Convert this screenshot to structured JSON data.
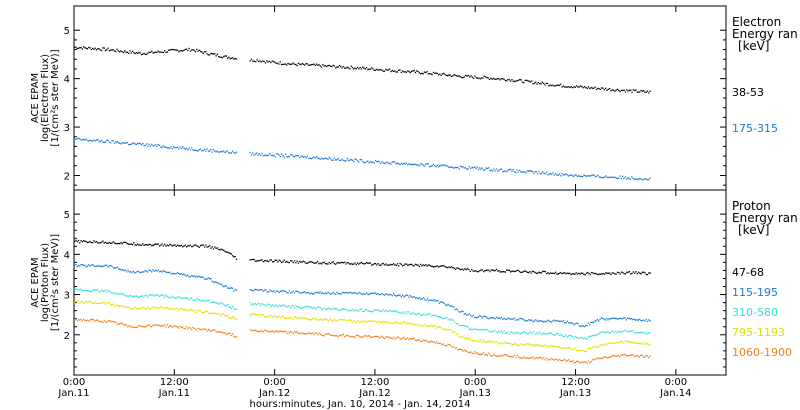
{
  "chart_data": {
    "type": "scatter",
    "x_title": "hours:minutes, Jan. 10, 2014 - Jan. 14, 2014",
    "x_range_hours": [
      0,
      78
    ],
    "x_ticks": [
      {
        "hour": 0,
        "time": "0:00",
        "date": "Jan.11"
      },
      {
        "hour": 12,
        "time": "12:00",
        "date": "Jan.11"
      },
      {
        "hour": 24,
        "time": "0:00",
        "date": "Jan.12"
      },
      {
        "hour": 36,
        "time": "12:00",
        "date": "Jan.12"
      },
      {
        "hour": 48,
        "time": "0:00",
        "date": "Jan.13"
      },
      {
        "hour": 60,
        "time": "12:00",
        "date": "Jan.13"
      },
      {
        "hour": 72,
        "time": "0:00",
        "date": "Jan.14"
      }
    ],
    "panels": [
      {
        "ylabel_lines": [
          "ACE EPAM",
          "log(Electron Flux)",
          "[1/(cm²s ster MeV)]"
        ],
        "ylim": [
          1.7,
          5.5
        ],
        "yticks": [
          "2",
          "3",
          "4",
          "5"
        ],
        "legend_title": [
          "Electron",
          "Energy ran",
          "[keV]"
        ],
        "series": [
          {
            "name": "38-53",
            "color": "#000000",
            "points": [
              [
                0,
                4.65
              ],
              [
                4,
                4.6
              ],
              [
                8,
                4.52
              ],
              [
                10,
                4.55
              ],
              [
                12,
                4.58
              ],
              [
                14,
                4.6
              ],
              [
                16,
                4.52
              ],
              [
                18,
                4.45
              ],
              [
                19.5,
                4.42
              ],
              [
                21,
                4.38
              ],
              [
                22,
                4.38
              ],
              [
                23,
                4.35
              ],
              [
                26,
                4.3
              ],
              [
                30,
                4.26
              ],
              [
                34,
                4.22
              ],
              [
                38,
                4.17
              ],
              [
                42,
                4.12
              ],
              [
                46,
                4.05
              ],
              [
                49,
                4.02
              ],
              [
                52,
                3.98
              ],
              [
                55,
                3.92
              ],
              [
                58,
                3.86
              ],
              [
                61,
                3.82
              ],
              [
                64,
                3.78
              ],
              [
                67,
                3.74
              ],
              [
                69,
                3.72
              ]
            ]
          },
          {
            "name": "175-315",
            "color": "#1f78d0",
            "points": [
              [
                0,
                2.75
              ],
              [
                4,
                2.7
              ],
              [
                8,
                2.64
              ],
              [
                12,
                2.58
              ],
              [
                16,
                2.52
              ],
              [
                19.5,
                2.47
              ],
              [
                21,
                2.45
              ],
              [
                24,
                2.42
              ],
              [
                28,
                2.38
              ],
              [
                32,
                2.33
              ],
              [
                36,
                2.28
              ],
              [
                40,
                2.24
              ],
              [
                44,
                2.19
              ],
              [
                48,
                2.15
              ],
              [
                52,
                2.1
              ],
              [
                56,
                2.05
              ],
              [
                60,
                2.0
              ],
              [
                64,
                1.97
              ],
              [
                69,
                1.93
              ]
            ]
          }
        ]
      },
      {
        "ylabel_lines": [
          "ACE EPAM",
          "log(Proton Flux)",
          "[1/(cm²s ster MeV)]"
        ],
        "ylim": [
          1.0,
          5.6
        ],
        "yticks": [
          "2",
          "3",
          "4",
          "5"
        ],
        "legend_title": [
          "Proton",
          "Energy ran",
          "[keV]"
        ],
        "series": [
          {
            "name": "47-68",
            "color": "#000000",
            "points": [
              [
                0,
                4.32
              ],
              [
                4,
                4.3
              ],
              [
                8,
                4.25
              ],
              [
                12,
                4.22
              ],
              [
                16,
                4.2
              ],
              [
                18,
                4.08
              ],
              [
                19.5,
                3.88
              ],
              [
                21,
                3.85
              ],
              [
                24,
                3.83
              ],
              [
                28,
                3.8
              ],
              [
                32,
                3.78
              ],
              [
                36,
                3.76
              ],
              [
                40,
                3.74
              ],
              [
                44,
                3.7
              ],
              [
                47,
                3.62
              ],
              [
                48,
                3.58
              ],
              [
                50,
                3.6
              ],
              [
                52,
                3.58
              ],
              [
                56,
                3.55
              ],
              [
                60,
                3.52
              ],
              [
                64,
                3.52
              ],
              [
                67,
                3.55
              ],
              [
                69,
                3.52
              ]
            ]
          },
          {
            "name": "115-195",
            "color": "#1f78d0",
            "points": [
              [
                0,
                3.72
              ],
              [
                4,
                3.72
              ],
              [
                7,
                3.55
              ],
              [
                10,
                3.6
              ],
              [
                14,
                3.45
              ],
              [
                16,
                3.4
              ],
              [
                18,
                3.2
              ],
              [
                19.5,
                3.08
              ],
              [
                21,
                3.12
              ],
              [
                24,
                3.08
              ],
              [
                28,
                3.05
              ],
              [
                32,
                3.03
              ],
              [
                36,
                3.03
              ],
              [
                40,
                2.96
              ],
              [
                43,
                2.85
              ],
              [
                45,
                2.72
              ],
              [
                46,
                2.58
              ],
              [
                48,
                2.45
              ],
              [
                50,
                2.42
              ],
              [
                52,
                2.4
              ],
              [
                55,
                2.35
              ],
              [
                58,
                2.35
              ],
              [
                61,
                2.22
              ],
              [
                63,
                2.4
              ],
              [
                66,
                2.4
              ],
              [
                69,
                2.35
              ]
            ]
          },
          {
            "name": "310-580",
            "color": "#33e0d8",
            "points": [
              [
                0,
                3.12
              ],
              [
                4,
                3.08
              ],
              [
                7,
                2.95
              ],
              [
                10,
                2.98
              ],
              [
                14,
                2.88
              ],
              [
                16,
                2.85
              ],
              [
                18,
                2.75
              ],
              [
                19.5,
                2.62
              ],
              [
                21,
                2.78
              ],
              [
                24,
                2.72
              ],
              [
                28,
                2.68
              ],
              [
                32,
                2.62
              ],
              [
                36,
                2.6
              ],
              [
                40,
                2.55
              ],
              [
                43,
                2.48
              ],
              [
                45,
                2.38
              ],
              [
                46,
                2.25
              ],
              [
                48,
                2.12
              ],
              [
                50,
                2.1
              ],
              [
                52,
                2.05
              ],
              [
                55,
                2.05
              ],
              [
                58,
                2.0
              ],
              [
                61,
                1.9
              ],
              [
                63,
                2.05
              ],
              [
                66,
                2.1
              ],
              [
                69,
                2.02
              ]
            ]
          },
          {
            "name": "795-1193",
            "color": "#e0e000",
            "points": [
              [
                0,
                2.82
              ],
              [
                4,
                2.78
              ],
              [
                7,
                2.65
              ],
              [
                10,
                2.68
              ],
              [
                14,
                2.6
              ],
              [
                16,
                2.56
              ],
              [
                18,
                2.48
              ],
              [
                19.5,
                2.38
              ],
              [
                21,
                2.5
              ],
              [
                24,
                2.45
              ],
              [
                28,
                2.4
              ],
              [
                32,
                2.35
              ],
              [
                36,
                2.33
              ],
              [
                40,
                2.28
              ],
              [
                43,
                2.2
              ],
              [
                45,
                2.1
              ],
              [
                46,
                1.98
              ],
              [
                48,
                1.85
              ],
              [
                50,
                1.82
              ],
              [
                52,
                1.78
              ],
              [
                55,
                1.75
              ],
              [
                58,
                1.7
              ],
              [
                61,
                1.6
              ],
              [
                63,
                1.75
              ],
              [
                66,
                1.82
              ],
              [
                69,
                1.76
              ]
            ]
          },
          {
            "name": "1060-1900",
            "color": "#f08018",
            "points": [
              [
                0,
                2.38
              ],
              [
                4,
                2.33
              ],
              [
                7,
                2.2
              ],
              [
                10,
                2.24
              ],
              [
                14,
                2.16
              ],
              [
                16,
                2.12
              ],
              [
                18,
                2.05
              ],
              [
                19.5,
                1.95
              ],
              [
                21,
                2.12
              ],
              [
                24,
                2.08
              ],
              [
                28,
                2.03
              ],
              [
                32,
                1.98
              ],
              [
                36,
                1.95
              ],
              [
                40,
                1.9
              ],
              [
                43,
                1.82
              ],
              [
                45,
                1.72
              ],
              [
                46,
                1.62
              ],
              [
                48,
                1.55
              ],
              [
                50,
                1.5
              ],
              [
                52,
                1.48
              ],
              [
                55,
                1.42
              ],
              [
                58,
                1.38
              ],
              [
                61,
                1.3
              ],
              [
                63,
                1.42
              ],
              [
                66,
                1.5
              ],
              [
                69,
                1.45
              ]
            ]
          }
        ]
      }
    ]
  }
}
